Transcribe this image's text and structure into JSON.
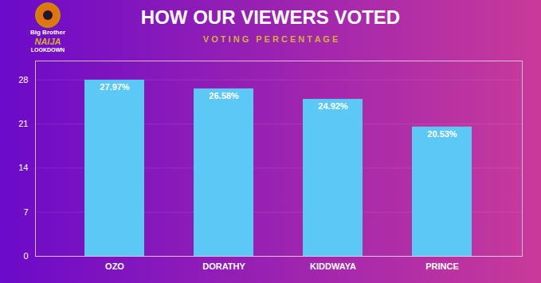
{
  "chart_data": {
    "type": "bar",
    "title": "HOW OUR VIEWERS VOTED",
    "subtitle": "V O T I N G   P E R C E N T A G E",
    "annotations": [
      "Big Brother",
      "NAIJA",
      "LOOKDOWN"
    ],
    "categories": [
      "OZO",
      "DORATHY",
      "KIDDWAYA",
      "PRINCE"
    ],
    "values": [
      27.97,
      26.58,
      24.92,
      20.53
    ],
    "value_labels": [
      "27.97%",
      "26.58%",
      "24.92%",
      "20.53%"
    ],
    "data_labels": true,
    "color": "#5BC8F5",
    "ylim": [
      0,
      31
    ],
    "yticks": [
      0,
      7,
      14,
      21,
      28
    ],
    "grid": true
  }
}
